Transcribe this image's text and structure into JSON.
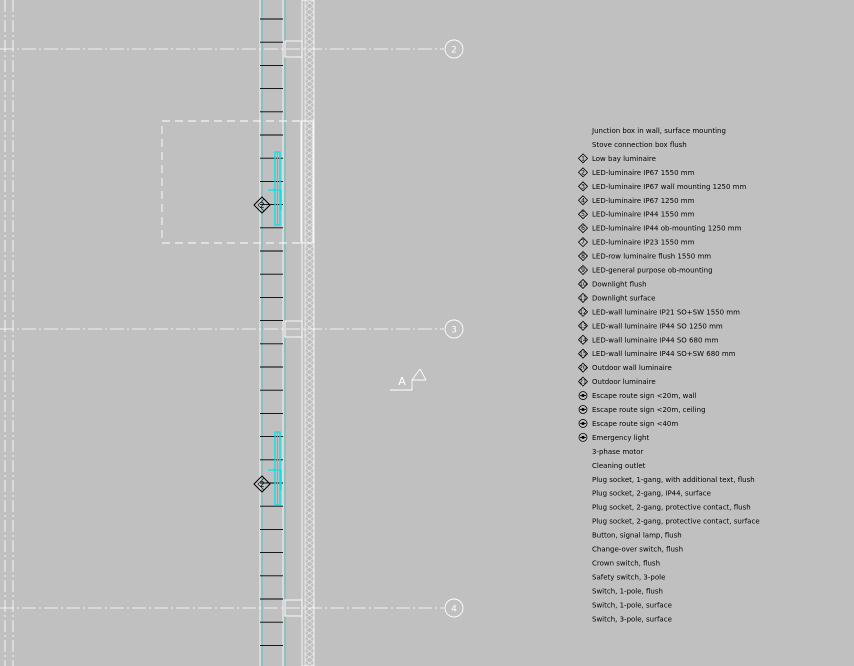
{
  "drawing": {
    "background": "#c0c0c0",
    "grid_line_color": "#ffffff",
    "highlight_color": "#00e5ee",
    "wall_color": "#ffffff",
    "axes": [
      {
        "label": "2"
      },
      {
        "label": "3"
      },
      {
        "label": "4"
      }
    ],
    "section_marker": {
      "label": "A"
    },
    "fixture_tags": [
      {
        "label": "2"
      },
      {
        "label": "2"
      }
    ]
  },
  "legend": {
    "items": [
      {
        "symbol": "",
        "text": "Junction box in wall, surface mounting"
      },
      {
        "symbol": "",
        "text": "Stove connection box flush"
      },
      {
        "symbol": "1",
        "text": "Low bay luminaire"
      },
      {
        "symbol": "2",
        "text": "LED-luminaire IP67 1550 mm"
      },
      {
        "symbol": "3",
        "text": "LED-luminaire IP67 wall mounting 1250 mm"
      },
      {
        "symbol": "4",
        "text": "LED-luminaire IP67 1250 mm"
      },
      {
        "symbol": "5",
        "text": "LED-luminaire IP44 1550 mm"
      },
      {
        "symbol": "6",
        "text": "LED-luminaire IP44 ob-mounting 1250 mm"
      },
      {
        "symbol": "7",
        "text": "LED-luminaire IP23 1550 mm"
      },
      {
        "symbol": "8",
        "text": "LED-row luminaire flush 1550 mm"
      },
      {
        "symbol": "9",
        "text": "LED-general purpose ob-mounting"
      },
      {
        "symbol": "10",
        "text": "Downlight flush"
      },
      {
        "symbol": "11",
        "text": "Downlight surface"
      },
      {
        "symbol": "12",
        "text": "LED-wall luminaire IP21 SO+SW 1550 mm"
      },
      {
        "symbol": "13",
        "text": "LED-wall luminaire IP44 SO 1250 mm"
      },
      {
        "symbol": "14",
        "text": "LED-wall luminaire IP44 SO 680 mm"
      },
      {
        "symbol": "15",
        "text": "LED-wall luminaire IP44 SO+SW 680 mm"
      },
      {
        "symbol": "20",
        "text": "Outdoor wall luminaire"
      },
      {
        "symbol": "21",
        "text": "Outdoor luminaire"
      },
      {
        "symbol": "E",
        "text": "Escape route sign <20m, wall"
      },
      {
        "symbol": "E",
        "text": "Escape route sign <20m, ceiling"
      },
      {
        "symbol": "E",
        "text": "Escape route sign <40m"
      },
      {
        "symbol": "E",
        "text": "Emergency light"
      },
      {
        "symbol": "",
        "text": "3-phase motor"
      },
      {
        "symbol": "",
        "text": "Cleaning outlet"
      },
      {
        "symbol": "",
        "text": "Plug socket, 1-gang, with additional text, flush"
      },
      {
        "symbol": "",
        "text": "Plug socket, 2-gang, IP44, surface"
      },
      {
        "symbol": "",
        "text": "Plug socket, 2-gang, protective contact, flush"
      },
      {
        "symbol": "",
        "text": "Plug socket, 2-gang, protective contact, surface"
      },
      {
        "symbol": "",
        "text": "Button, signal lamp, flush"
      },
      {
        "symbol": "",
        "text": "Change-over switch, flush"
      },
      {
        "symbol": "",
        "text": "Crown switch, flush"
      },
      {
        "symbol": "",
        "text": "Safety switch, 3-pole"
      },
      {
        "symbol": "",
        "text": "Switch, 1-pole, flush"
      },
      {
        "symbol": "",
        "text": "Switch, 1-pole, surface"
      },
      {
        "symbol": "",
        "text": "Switch, 3-pole, surface"
      }
    ]
  }
}
